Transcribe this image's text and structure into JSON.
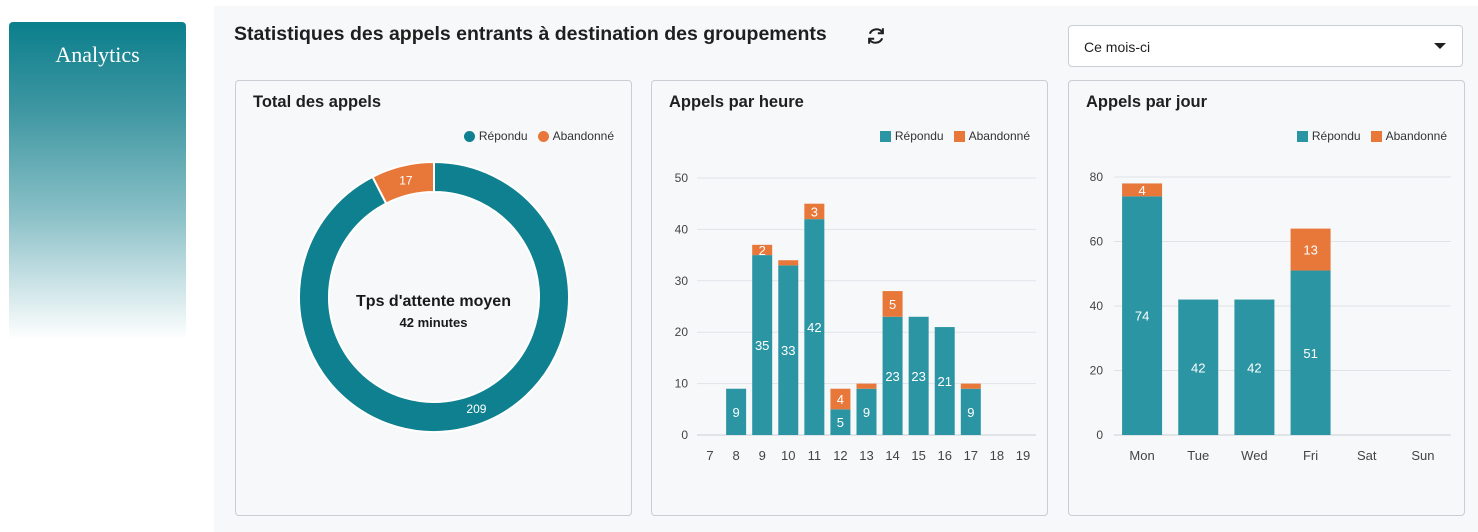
{
  "sidebar": {
    "title": "Analytics"
  },
  "header": {
    "title": "Statistiques des appels entrants à destination des groupements",
    "refresh_icon": "refresh-icon",
    "period_select": {
      "value": "Ce mois-ci"
    }
  },
  "colors": {
    "repondu": "#0f8090",
    "abandonne": "#e8783a",
    "bar_repondu": "#2c95a4"
  },
  "cards": {
    "total": {
      "title": "Total des appels",
      "center_title": "Tps d'attente moyen",
      "center_value": "42 minutes"
    },
    "hour": {
      "title": "Appels par heure"
    },
    "day": {
      "title": "Appels par jour"
    }
  },
  "legend": {
    "repondu": "Répondu",
    "abandonne": "Abandonné"
  },
  "chart_data": [
    {
      "type": "pie",
      "title": "Total des appels",
      "categories": [
        "Répondu",
        "Abandonné"
      ],
      "values": [
        209,
        17
      ]
    },
    {
      "type": "bar",
      "stacked": true,
      "title": "Appels par heure",
      "categories": [
        "7",
        "8",
        "9",
        "10",
        "11",
        "12",
        "13",
        "14",
        "15",
        "16",
        "17",
        "18",
        "19"
      ],
      "series": [
        {
          "name": "Répondu",
          "values": [
            0,
            9,
            35,
            33,
            42,
            5,
            9,
            23,
            23,
            21,
            9,
            0,
            0
          ]
        },
        {
          "name": "Abandonné",
          "values": [
            0,
            0,
            2,
            1,
            3,
            4,
            1,
            5,
            0,
            0,
            1,
            0,
            0
          ]
        }
      ],
      "ylim": [
        0,
        50
      ],
      "yticks": [
        0,
        10,
        20,
        30,
        40,
        50
      ],
      "labeled": {
        "Répondu": [
          false,
          true,
          true,
          true,
          true,
          true,
          true,
          true,
          true,
          true,
          true,
          false,
          false
        ],
        "Abandonné": [
          false,
          false,
          true,
          false,
          true,
          true,
          false,
          true,
          false,
          false,
          false,
          false,
          false
        ]
      }
    },
    {
      "type": "bar",
      "stacked": true,
      "title": "Appels par jour",
      "categories": [
        "Mon",
        "Tue",
        "Wed",
        "Fri",
        "Sat",
        "Sun"
      ],
      "series": [
        {
          "name": "Répondu",
          "values": [
            74,
            42,
            42,
            51,
            0,
            0
          ]
        },
        {
          "name": "Abandonné",
          "values": [
            4,
            0,
            0,
            13,
            0,
            0
          ]
        }
      ],
      "ylim": [
        0,
        80
      ],
      "yticks": [
        0,
        20,
        40,
        60,
        80
      ],
      "labeled": {
        "Répondu": [
          true,
          true,
          true,
          true,
          false,
          false
        ],
        "Abandonné": [
          true,
          false,
          false,
          true,
          false,
          false
        ]
      }
    }
  ]
}
